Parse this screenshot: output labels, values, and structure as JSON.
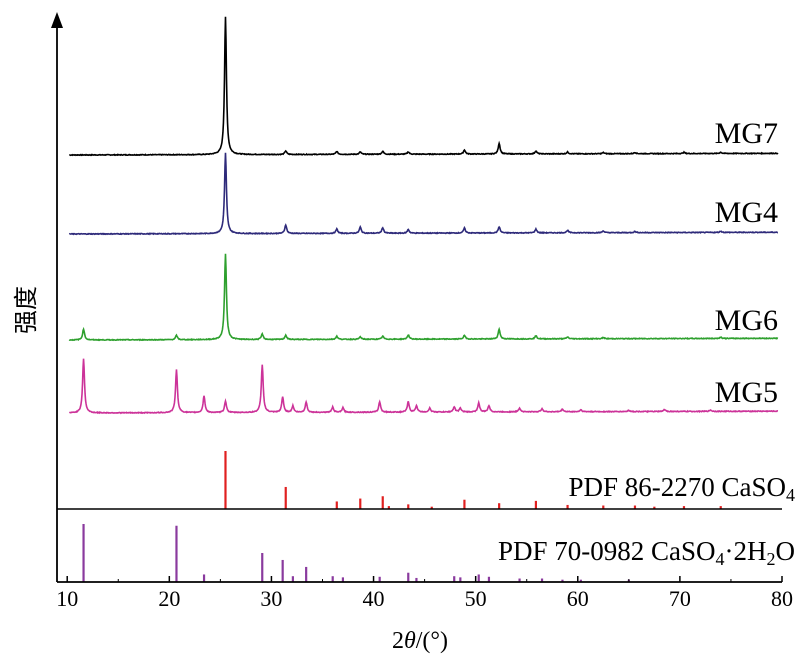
{
  "chart_data": {
    "type": "line",
    "xlabel_prefix": "2",
    "xlabel_var": "θ",
    "xlabel_suffix": "/(°)",
    "ylabel": "强度",
    "xlim": [
      9,
      80
    ],
    "xticks": [
      10,
      20,
      30,
      40,
      50,
      60,
      70,
      80
    ],
    "grid": false,
    "series": [
      {
        "name": "MG7",
        "color": "#000000",
        "baseline": 0.0,
        "peaks": [
          [
            25.5,
            11.5
          ],
          [
            31.4,
            0.3
          ],
          [
            36.4,
            0.25
          ],
          [
            38.7,
            0.2
          ],
          [
            40.9,
            0.25
          ],
          [
            43.4,
            0.2
          ],
          [
            48.9,
            0.35
          ],
          [
            52.3,
            0.9
          ],
          [
            55.9,
            0.25
          ],
          [
            59.0,
            0.15
          ],
          [
            62.5,
            0.1
          ],
          [
            65.6,
            0.1
          ],
          [
            70.4,
            0.1
          ],
          [
            74.0,
            0.1
          ]
        ]
      },
      {
        "name": "MG4",
        "color": "#2e2a7a",
        "baseline": 0.0,
        "peaks": [
          [
            25.5,
            6.5
          ],
          [
            31.4,
            0.7
          ],
          [
            36.4,
            0.35
          ],
          [
            38.7,
            0.5
          ],
          [
            40.9,
            0.45
          ],
          [
            43.4,
            0.3
          ],
          [
            48.9,
            0.4
          ],
          [
            52.3,
            0.5
          ],
          [
            55.9,
            0.3
          ],
          [
            59.0,
            0.2
          ],
          [
            62.5,
            0.15
          ],
          [
            65.6,
            0.1
          ],
          [
            74.0,
            0.1
          ]
        ]
      },
      {
        "name": "MG6",
        "color": "#2ea02e",
        "baseline": 0.0,
        "peaks": [
          [
            11.6,
            0.9
          ],
          [
            20.7,
            0.35
          ],
          [
            25.5,
            7.0
          ],
          [
            29.1,
            0.45
          ],
          [
            31.4,
            0.35
          ],
          [
            36.4,
            0.25
          ],
          [
            38.7,
            0.2
          ],
          [
            40.9,
            0.25
          ],
          [
            43.4,
            0.35
          ],
          [
            48.9,
            0.3
          ],
          [
            52.3,
            0.8
          ],
          [
            55.9,
            0.25
          ],
          [
            59.0,
            0.15
          ],
          [
            62.5,
            0.1
          ],
          [
            74.0,
            0.1
          ]
        ]
      },
      {
        "name": "MG5",
        "color": "#cc3399",
        "baseline": 0.0,
        "peaks": [
          [
            11.6,
            4.2
          ],
          [
            20.7,
            3.3
          ],
          [
            23.4,
            1.3
          ],
          [
            25.5,
            0.9
          ],
          [
            29.1,
            3.7
          ],
          [
            31.1,
            1.2
          ],
          [
            32.1,
            0.5
          ],
          [
            33.4,
            0.8
          ],
          [
            36.0,
            0.4
          ],
          [
            37.0,
            0.35
          ],
          [
            40.6,
            0.8
          ],
          [
            43.4,
            0.8
          ],
          [
            44.2,
            0.5
          ],
          [
            45.5,
            0.3
          ],
          [
            47.9,
            0.4
          ],
          [
            48.5,
            0.3
          ],
          [
            50.3,
            0.7
          ],
          [
            51.3,
            0.5
          ],
          [
            54.3,
            0.3
          ],
          [
            56.5,
            0.25
          ],
          [
            58.5,
            0.2
          ],
          [
            60.3,
            0.15
          ],
          [
            65.0,
            0.1
          ],
          [
            68.5,
            0.15
          ],
          [
            73.0,
            0.1
          ]
        ]
      }
    ],
    "reference_patterns": [
      {
        "label_main": "PDF 86-2270 CaSO",
        "label_sub": "4",
        "label_tail": "",
        "color": "#e02020",
        "lines": [
          [
            25.5,
            1.0
          ],
          [
            31.4,
            0.38
          ],
          [
            36.4,
            0.13
          ],
          [
            38.7,
            0.18
          ],
          [
            40.9,
            0.22
          ],
          [
            41.5,
            0.05
          ],
          [
            43.4,
            0.08
          ],
          [
            45.7,
            0.04
          ],
          [
            48.9,
            0.16
          ],
          [
            52.3,
            0.1
          ],
          [
            55.9,
            0.14
          ],
          [
            59.0,
            0.07
          ],
          [
            62.5,
            0.06
          ],
          [
            65.6,
            0.06
          ],
          [
            67.5,
            0.04
          ],
          [
            70.4,
            0.05
          ],
          [
            74.0,
            0.05
          ]
        ]
      },
      {
        "label_main": "PDF 70-0982 CaSO",
        "label_sub": "4",
        "label_tail": "·2H",
        "label_sub2": "2",
        "label_tail2": "O",
        "color": "#8a3a9e",
        "lines": [
          [
            11.6,
            1.0
          ],
          [
            20.7,
            0.97
          ],
          [
            23.4,
            0.13
          ],
          [
            29.1,
            0.5
          ],
          [
            31.1,
            0.38
          ],
          [
            32.1,
            0.1
          ],
          [
            33.4,
            0.26
          ],
          [
            36.0,
            0.1
          ],
          [
            37.0,
            0.08
          ],
          [
            40.6,
            0.09
          ],
          [
            43.4,
            0.16
          ],
          [
            44.2,
            0.07
          ],
          [
            47.9,
            0.1
          ],
          [
            48.5,
            0.08
          ],
          [
            50.3,
            0.13
          ],
          [
            51.3,
            0.09
          ],
          [
            54.3,
            0.06
          ],
          [
            56.5,
            0.06
          ],
          [
            58.5,
            0.04
          ],
          [
            60.3,
            0.04
          ],
          [
            65.0,
            0.04
          ]
        ]
      }
    ]
  }
}
